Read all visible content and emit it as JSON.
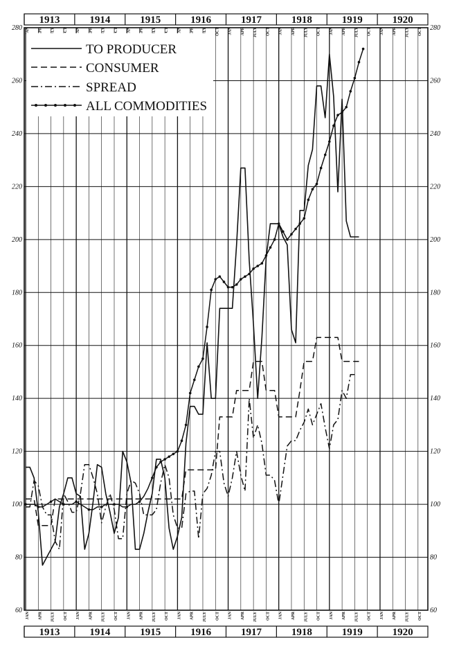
{
  "chart_data": {
    "type": "line",
    "title": "",
    "xlabel": "",
    "ylabel": "",
    "ylim": [
      60,
      280
    ],
    "yticks": [
      60,
      80,
      100,
      120,
      140,
      160,
      180,
      200,
      220,
      240,
      260,
      280
    ],
    "ytick_labels": [
      "60",
      "80",
      "100",
      "120",
      "140",
      "160",
      "180",
      "200",
      "220",
      "240",
      "260",
      "280"
    ],
    "years": [
      "1913",
      "1914",
      "1915",
      "1916",
      "1917",
      "1918",
      "1919",
      "1920"
    ],
    "months": [
      "JAN",
      "APR",
      "JULY",
      "OCT"
    ],
    "grid": true,
    "legend_position": "top-left",
    "series": [
      {
        "name": "TO PRODUCER",
        "style": "solid",
        "x": [
          0,
          1,
          2,
          3,
          4,
          5,
          6,
          7,
          8,
          9,
          10,
          11,
          12,
          13,
          14,
          15,
          16,
          17,
          18,
          19,
          20,
          21,
          22,
          23,
          24,
          25,
          26,
          27,
          28,
          29,
          30,
          31,
          32,
          33,
          34,
          35,
          36,
          37,
          38,
          39,
          40,
          41,
          42,
          43,
          44,
          45,
          46,
          47,
          48,
          49,
          50,
          51,
          52,
          53,
          54,
          55,
          56,
          57,
          58,
          59,
          60,
          61,
          62,
          63,
          64,
          65,
          66,
          67,
          68,
          69,
          70,
          71,
          72,
          73,
          74,
          75,
          76,
          77,
          78,
          79,
          80,
          81,
          82,
          83,
          84,
          85,
          86,
          87
        ],
        "values": [
          114,
          114,
          110,
          97,
          77,
          80,
          83,
          86,
          99,
          104,
          110,
          110,
          104,
          103,
          83,
          89,
          101,
          115,
          114,
          104,
          97,
          89,
          95,
          120,
          116,
          108,
          83,
          83,
          89,
          97,
          104,
          117,
          117,
          110,
          91,
          83,
          88,
          95,
          123,
          137,
          137,
          134,
          134,
          161,
          140,
          140,
          174,
          174,
          174,
          174,
          198,
          227,
          227,
          192,
          168,
          140,
          163,
          193,
          206,
          206,
          206,
          201,
          198,
          166,
          161,
          211,
          211,
          228,
          234,
          258,
          258,
          246,
          270,
          254,
          218,
          253,
          207,
          201,
          201,
          201,
          null,
          null,
          null,
          null,
          null,
          null,
          null,
          null
        ]
      },
      {
        "name": "CONSUMER",
        "style": "dashed",
        "x": [
          0,
          1,
          2,
          3,
          4,
          5,
          6,
          7,
          8,
          9,
          10,
          11,
          12,
          13,
          14,
          15,
          16,
          17,
          18,
          19,
          20,
          21,
          22,
          23,
          24,
          25,
          26,
          27,
          28,
          29,
          30,
          31,
          32,
          33,
          34,
          35,
          36,
          37,
          38,
          39,
          40,
          41,
          42,
          43,
          44,
          45,
          46,
          47,
          48,
          49,
          50,
          51,
          52,
          53,
          54,
          55,
          56,
          57,
          58,
          59,
          60,
          61,
          62,
          63,
          64,
          65,
          66,
          67,
          68,
          69,
          70,
          71,
          72,
          73,
          74,
          75,
          76,
          77,
          78,
          79,
          80
        ],
        "values": [
          102,
          102,
          102,
          92,
          92,
          92,
          92,
          102,
          102,
          102,
          102,
          102,
          102,
          102,
          102,
          102,
          102,
          102,
          102,
          102,
          102,
          102,
          102,
          102,
          102,
          102,
          102,
          102,
          102,
          102,
          102,
          102,
          102,
          102,
          102,
          102,
          102,
          102,
          113,
          113,
          113,
          113,
          113,
          113,
          113,
          113,
          133,
          133,
          133,
          133,
          143,
          143,
          143,
          143,
          154,
          154,
          154,
          143,
          143,
          143,
          133,
          133,
          133,
          133,
          133,
          143,
          154,
          154,
          154,
          163,
          163,
          163,
          163,
          163,
          163,
          154,
          154,
          154,
          154,
          154,
          null
        ]
      },
      {
        "name": "SPREAD",
        "style": "dash-dot",
        "x": [
          0,
          1,
          2,
          3,
          4,
          5,
          6,
          7,
          8,
          9,
          10,
          11,
          12,
          13,
          14,
          15,
          16,
          17,
          18,
          19,
          20,
          21,
          22,
          23,
          24,
          25,
          26,
          27,
          28,
          29,
          30,
          31,
          32,
          33,
          34,
          35,
          36,
          37,
          38,
          39,
          40,
          41,
          42,
          43,
          44,
          45,
          46,
          47,
          48,
          49,
          50,
          51,
          52,
          53,
          54,
          55,
          56,
          57,
          58,
          59,
          60,
          61,
          62,
          63,
          64,
          65,
          66,
          67,
          68,
          69,
          70,
          71,
          72,
          73,
          74,
          75,
          76,
          77,
          78,
          79
        ],
        "values": [
          99,
          99,
          109,
          107,
          99,
          96,
          96,
          86,
          83,
          104,
          101,
          97,
          97,
          104,
          115,
          115,
          110,
          104,
          93,
          99,
          104,
          98,
          87,
          87,
          104,
          109,
          108,
          104,
          96,
          96,
          96,
          98,
          108,
          115,
          110,
          96,
          91,
          91,
          104,
          105,
          105,
          87,
          104,
          106,
          111,
          120,
          120,
          108,
          103,
          110,
          120,
          111,
          105,
          140,
          125,
          130,
          123,
          111,
          111,
          109,
          100,
          111,
          122,
          124,
          124,
          128,
          131,
          136,
          130,
          134,
          138,
          129,
          121,
          130,
          132,
          143,
          140,
          149,
          149,
          null
        ]
      },
      {
        "name": "ALL COMMODITIES",
        "style": "solid-dots",
        "x": [
          0,
          1,
          2,
          3,
          4,
          5,
          6,
          7,
          8,
          9,
          10,
          11,
          12,
          13,
          14,
          15,
          16,
          17,
          18,
          19,
          20,
          21,
          22,
          23,
          24,
          25,
          26,
          27,
          28,
          29,
          30,
          31,
          32,
          33,
          34,
          35,
          36,
          37,
          38,
          39,
          40,
          41,
          42,
          43,
          44,
          45,
          46,
          47,
          48,
          49,
          50,
          51,
          52,
          53,
          54,
          55,
          56,
          57,
          58,
          59,
          60,
          61,
          62,
          63,
          64,
          65,
          66,
          67,
          68,
          69,
          70,
          71,
          72,
          73,
          74,
          75,
          76,
          77,
          78,
          79,
          80
        ],
        "values": [
          100,
          100,
          100,
          99,
          99,
          100,
          101,
          102,
          101,
          100,
          100,
          100,
          101,
          100,
          99,
          98,
          98,
          99,
          99,
          100,
          100,
          100,
          100,
          99,
          99,
          100,
          100,
          101,
          103,
          106,
          110,
          114,
          116,
          117,
          118,
          119,
          120,
          124,
          130,
          142,
          147,
          152,
          155,
          167,
          181,
          185,
          186,
          184,
          182,
          182,
          183,
          185,
          186,
          187,
          189,
          190,
          191,
          194,
          197,
          200,
          206,
          203,
          200,
          202,
          204,
          206,
          208,
          215,
          219,
          221,
          227,
          232,
          237,
          243,
          247,
          248,
          250,
          256,
          261,
          267,
          272
        ]
      }
    ]
  }
}
